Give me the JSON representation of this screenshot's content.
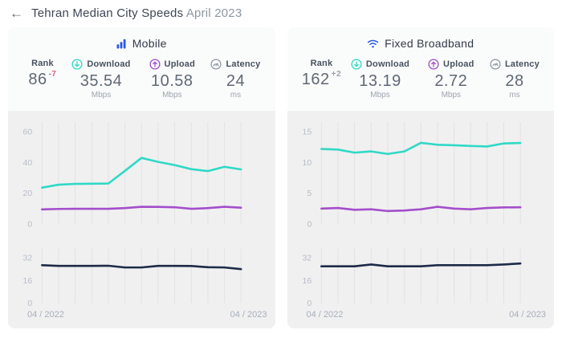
{
  "header": {
    "back_icon": "←",
    "title_main": "Tehran Median City Speeds",
    "title_period": "April 2023"
  },
  "colors": {
    "brand_blue": "#2b59e8",
    "download_teal": "#30d9c5",
    "upload_purple": "#a44ecb",
    "latency_navy": "#1d2b48",
    "rank_down": "#e0607a",
    "rank_up": "#97a1ad",
    "grid_line": "#e3e3e6",
    "tick_text": "#b7bdc7"
  },
  "icons": {
    "back": "left-arrow",
    "mobile": "signal-bars",
    "fixed_broadband": "wifi",
    "download": "circle-arrow-down",
    "upload": "circle-arrow-up",
    "latency": "circle-gauge"
  },
  "cards": [
    {
      "network_label": "Mobile",
      "stats": {
        "rank": {
          "label": "Rank",
          "value": "86",
          "change": "-7"
        },
        "download": {
          "label": "Download",
          "value": "35.54",
          "unit": "Mbps"
        },
        "upload": {
          "label": "Upload",
          "value": "10.58",
          "unit": "Mbps"
        },
        "latency": {
          "label": "Latency",
          "value": "24",
          "unit": "ms"
        }
      },
      "x_axis": {
        "start": "04 / 2022",
        "end": "04 / 2023"
      }
    },
    {
      "network_label": "Fixed Broadband",
      "stats": {
        "rank": {
          "label": "Rank",
          "value": "162",
          "change": "+2"
        },
        "download": {
          "label": "Download",
          "value": "13.19",
          "unit": "Mbps"
        },
        "upload": {
          "label": "Upload",
          "value": "2.72",
          "unit": "Mbps"
        },
        "latency": {
          "label": "Latency",
          "value": "28",
          "unit": "ms"
        }
      },
      "x_axis": {
        "start": "04 / 2022",
        "end": "04 / 2023"
      }
    }
  ],
  "chart_data": [
    {
      "id": "mobile-speeds",
      "type": "line",
      "x": [
        "04/2022",
        "05/2022",
        "06/2022",
        "07/2022",
        "08/2022",
        "09/2022",
        "10/2022",
        "11/2022",
        "12/2022",
        "01/2023",
        "02/2023",
        "03/2023",
        "04/2023"
      ],
      "ylim": [
        0,
        60
      ],
      "yticks": [
        60,
        40,
        20,
        0
      ],
      "grid": "vertical",
      "legend": "none",
      "series": [
        {
          "name": "Download (Mbps)",
          "color": "#30d9c5",
          "values": [
            23.7,
            25.6,
            26.1,
            26.2,
            26.3,
            34.6,
            43.0,
            40.4,
            38.3,
            35.7,
            34.4,
            37.2,
            35.54
          ]
        },
        {
          "name": "Upload (Mbps)",
          "color": "#a44ecb",
          "values": [
            9.5,
            9.8,
            9.9,
            9.9,
            9.9,
            10.3,
            11.2,
            11.1,
            10.9,
            9.9,
            10.3,
            11.2,
            10.58
          ]
        }
      ]
    },
    {
      "id": "mobile-latency",
      "type": "line",
      "x": [
        "04/2022",
        "05/2022",
        "06/2022",
        "07/2022",
        "08/2022",
        "09/2022",
        "10/2022",
        "11/2022",
        "12/2022",
        "01/2023",
        "02/2023",
        "03/2023",
        "04/2023"
      ],
      "ylim": [
        0,
        40
      ],
      "yticks": [
        32,
        16,
        0
      ],
      "grid": "vertical",
      "legend": "none",
      "series": [
        {
          "name": "Latency (ms)",
          "color": "#1d2b48",
          "values": [
            26.8,
            26.3,
            26.3,
            26.3,
            26.4,
            25.2,
            25.2,
            26.3,
            26.3,
            26.2,
            25.4,
            25.2,
            24
          ]
        }
      ]
    },
    {
      "id": "fixed-speeds",
      "type": "line",
      "x": [
        "04/2022",
        "05/2022",
        "06/2022",
        "07/2022",
        "08/2022",
        "09/2022",
        "10/2022",
        "11/2022",
        "12/2022",
        "01/2023",
        "02/2023",
        "03/2023",
        "04/2023"
      ],
      "ylim": [
        0,
        15
      ],
      "yticks": [
        15,
        10,
        5,
        0
      ],
      "grid": "vertical",
      "legend": "none",
      "series": [
        {
          "name": "Download (Mbps)",
          "color": "#30d9c5",
          "values": [
            12.2,
            12.1,
            11.6,
            11.8,
            11.4,
            11.8,
            13.2,
            12.9,
            12.8,
            12.7,
            12.6,
            13.1,
            13.19
          ]
        },
        {
          "name": "Upload (Mbps)",
          "color": "#a44ecb",
          "values": [
            2.5,
            2.6,
            2.3,
            2.4,
            2.1,
            2.2,
            2.4,
            2.8,
            2.5,
            2.4,
            2.6,
            2.7,
            2.72
          ]
        }
      ]
    },
    {
      "id": "fixed-latency",
      "type": "line",
      "x": [
        "04/2022",
        "05/2022",
        "06/2022",
        "07/2022",
        "08/2022",
        "09/2022",
        "10/2022",
        "11/2022",
        "12/2022",
        "01/2023",
        "02/2023",
        "03/2023",
        "04/2023"
      ],
      "ylim": [
        0,
        40
      ],
      "yticks": [
        32,
        16,
        0
      ],
      "grid": "vertical",
      "legend": "none",
      "series": [
        {
          "name": "Latency (ms)",
          "color": "#1d2b48",
          "values": [
            26,
            26,
            26,
            27.3,
            26,
            26,
            26,
            26.8,
            26.8,
            26.8,
            26.8,
            27.3,
            28
          ]
        }
      ]
    }
  ]
}
